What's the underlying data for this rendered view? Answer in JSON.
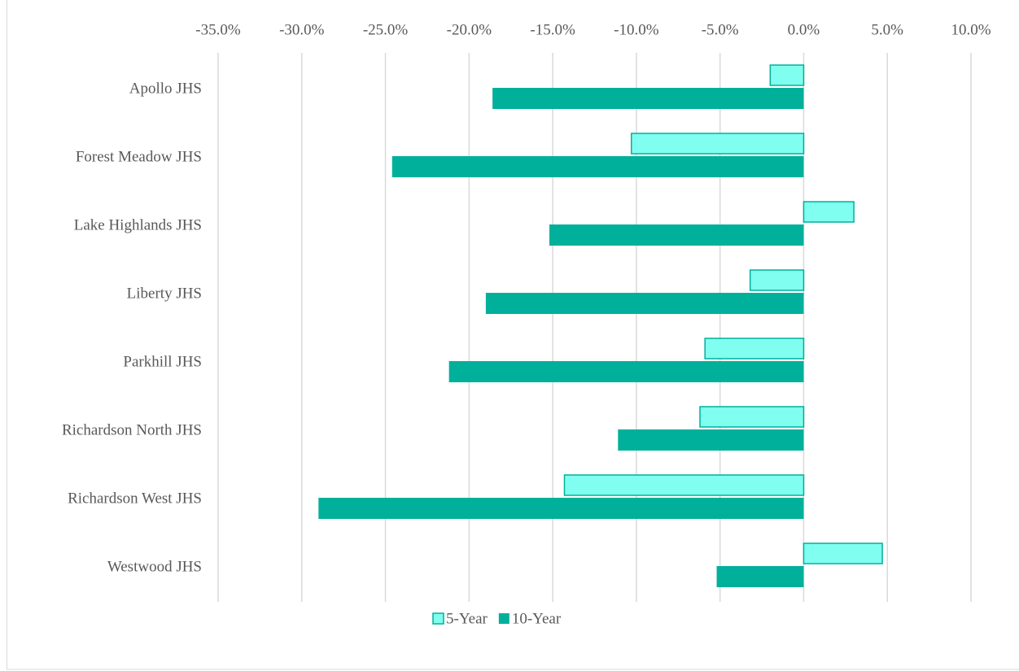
{
  "chart_data": {
    "type": "hbar",
    "categories": [
      "Apollo JHS",
      "Forest Meadow JHS",
      "Lake Highlands JHS",
      "Liberty JHS",
      "Parkhill JHS",
      "Richardson North JHS",
      "Richardson West JHS",
      "Westwood JHS"
    ],
    "series": [
      {
        "name": "5-Year",
        "color": "#80fff0",
        "values": [
          -2.0,
          -10.3,
          3.0,
          -3.2,
          -5.9,
          -6.2,
          -14.3,
          4.7
        ]
      },
      {
        "name": "10-Year",
        "color": "#00b09b",
        "values": [
          -18.6,
          -24.6,
          -15.2,
          -19.0,
          -21.2,
          -11.1,
          -29.0,
          -5.2
        ]
      }
    ],
    "xlim": [
      -35,
      10
    ],
    "xticks": [
      {
        "value": -35,
        "label": "-35.0%"
      },
      {
        "value": -30,
        "label": "-30.0%"
      },
      {
        "value": -25,
        "label": "-25.0%"
      },
      {
        "value": -20,
        "label": "-20.0%"
      },
      {
        "value": -15,
        "label": "-15.0%"
      },
      {
        "value": -10,
        "label": "-10.0%"
      },
      {
        "value": -5,
        "label": "-5.0%"
      },
      {
        "value": 0,
        "label": "0.0%"
      },
      {
        "value": 5,
        "label": "5.0%"
      },
      {
        "value": 10,
        "label": "10.0%"
      }
    ],
    "grid": true,
    "legend": "bottom"
  }
}
